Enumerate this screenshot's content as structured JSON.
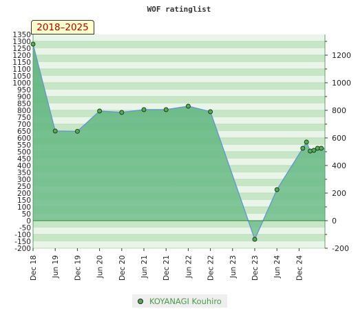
{
  "title": "WOF ratinglist",
  "period_label": "2018–2025",
  "colors": {
    "area_fill": "#74c08e",
    "line": "#6699cc",
    "marker": "#55aa55",
    "band_dark": "#c6e6c6",
    "band_light": "#e8f5e8",
    "legend_text": "#4a9a4a",
    "badge_text": "#b00000",
    "badge_bg": "#ffffcc"
  },
  "chart_data": {
    "type": "area",
    "title": "WOF ratinglist",
    "xlabel": "",
    "ylabel": "",
    "ylim": [
      -200,
      1350
    ],
    "y_ticks_left": [
      "1350",
      "1300",
      "1250",
      "1200",
      "1150",
      "1100",
      "1050",
      "1000",
      "950",
      "900",
      "850",
      "800",
      "750",
      "700",
      "650",
      "600",
      "550",
      "500",
      "450",
      "400",
      "350",
      "300",
      "250",
      "200",
      "150",
      "100",
      "50",
      "0",
      "-50",
      "-100",
      "-150",
      "-200"
    ],
    "y_ticks_right": [
      "1200",
      "1000",
      "800",
      "600",
      "400",
      "200",
      "0",
      "-200"
    ],
    "x_tick_labels": [
      "Dec 18",
      "Jun 19",
      "Dec 19",
      "Jun 20",
      "Dec 20",
      "Jun 21",
      "Dec 21",
      "Jun 22",
      "Dec 22",
      "Jun 23",
      "Dec 23",
      "Jun 24",
      "Dec 24"
    ],
    "grid": true,
    "legend_position": "bottom",
    "series": [
      {
        "name": "KOYANAGI Kouhiro",
        "x": [
          "2018-12",
          "2019-06",
          "2019-12",
          "2020-06",
          "2020-12",
          "2021-06",
          "2021-12",
          "2022-06",
          "2022-12",
          "2023-12",
          "2024-06",
          "2025-01",
          "2025-02",
          "2025-03",
          "2025-04",
          "2025-05",
          "2025-06"
        ],
        "values": [
          1280,
          650,
          648,
          795,
          785,
          805,
          805,
          830,
          790,
          -135,
          225,
          525,
          570,
          505,
          510,
          525,
          525
        ]
      }
    ]
  }
}
